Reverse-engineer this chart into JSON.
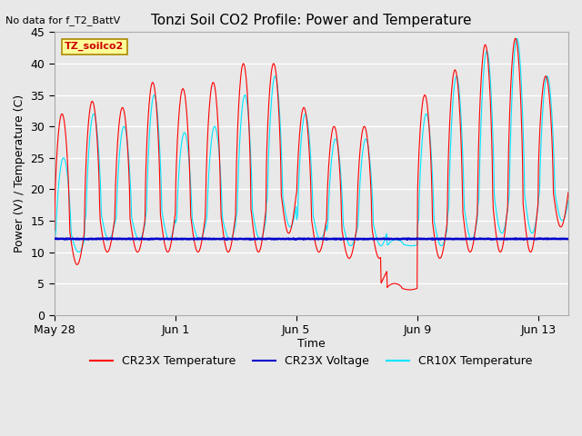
{
  "title": "Tonzi Soil CO2 Profile: Power and Temperature",
  "no_data_label": "No data for f_T2_BattV",
  "ylabel": "Power (V) / Temperature (C)",
  "xlabel": "Time",
  "ylim": [
    0,
    45
  ],
  "xlim_days": [
    0,
    17
  ],
  "yticks": [
    0,
    5,
    10,
    15,
    20,
    25,
    30,
    35,
    40,
    45
  ],
  "xtick_labels": [
    "May 28",
    "Jun 1",
    "Jun 5",
    "Jun 9",
    "Jun 13"
  ],
  "xtick_positions": [
    0,
    4,
    8,
    12,
    16
  ],
  "background_color": "#e8e8e8",
  "plot_bg_color": "#e8e8e8",
  "grid_color": "#ffffff",
  "legend_items": [
    {
      "label": "CR23X Temperature",
      "color": "#ff0000"
    },
    {
      "label": "CR23X Voltage",
      "color": "#0000cc"
    },
    {
      "label": "CR10X Temperature",
      "color": "#00e5ff"
    }
  ],
  "annotation_box": {
    "text": "TZ_soilco2",
    "bg": "#ffff99",
    "border": "#aa8800"
  },
  "voltage_level": 12.1,
  "title_fontsize": 11,
  "axis_fontsize": 9,
  "tick_fontsize": 9
}
